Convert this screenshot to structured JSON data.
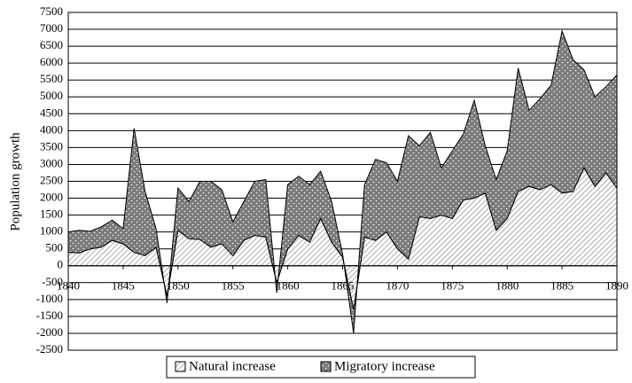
{
  "chart_data": {
    "type": "stacked-area",
    "y_label": "Population growth",
    "x": [
      1840,
      1841,
      1842,
      1843,
      1844,
      1845,
      1846,
      1847,
      1848,
      1849,
      1850,
      1851,
      1852,
      1853,
      1854,
      1855,
      1856,
      1857,
      1858,
      1859,
      1860,
      1861,
      1862,
      1863,
      1864,
      1865,
      1866,
      1867,
      1868,
      1869,
      1870,
      1871,
      1872,
      1873,
      1874,
      1875,
      1876,
      1877,
      1878,
      1879,
      1880,
      1881,
      1882,
      1883,
      1884,
      1885,
      1886,
      1887,
      1888,
      1889,
      1890
    ],
    "series": [
      {
        "name": "Natural increase",
        "color": "#b8b8b8",
        "values": [
          400,
          380,
          500,
          550,
          750,
          650,
          400,
          300,
          550,
          -900,
          1050,
          800,
          780,
          550,
          650,
          300,
          750,
          900,
          850,
          -500,
          500,
          900,
          700,
          1400,
          700,
          250,
          -1300,
          850,
          750,
          1000,
          500,
          200,
          1450,
          1400,
          1500,
          1400,
          1950,
          2000,
          2150,
          1050,
          1400,
          2200,
          2350,
          2250,
          2400,
          2150,
          2200,
          2900,
          2350,
          2750,
          2300
        ]
      },
      {
        "name": "Migratory increase",
        "color": "#7a7a7a",
        "values": [
          600,
          670,
          520,
          600,
          600,
          450,
          3670,
          1900,
          550,
          -200,
          1250,
          1100,
          1720,
          1950,
          1600,
          1000,
          1150,
          1600,
          1700,
          -300,
          1900,
          1750,
          1700,
          1400,
          1200,
          100,
          -700,
          1550,
          2400,
          2050,
          2000,
          3650,
          2100,
          2550,
          1400,
          2000,
          1950,
          2900,
          1400,
          1500,
          2000,
          3650,
          2250,
          2700,
          2950,
          4800,
          3900,
          2900,
          2650,
          2550,
          3350
        ]
      }
    ],
    "xlim": [
      1840,
      1890
    ],
    "xticks": [
      1840,
      1845,
      1850,
      1855,
      1860,
      1865,
      1870,
      1875,
      1880,
      1885,
      1890
    ],
    "ylim": [
      -2500,
      7500
    ],
    "yticks": [
      -2500,
      -2000,
      -1500,
      -1000,
      -500,
      0,
      500,
      1000,
      1500,
      2000,
      2500,
      3000,
      3500,
      4000,
      4500,
      5000,
      5500,
      6000,
      6500,
      7000,
      7500
    ],
    "grid": true,
    "legend": "bottom"
  }
}
